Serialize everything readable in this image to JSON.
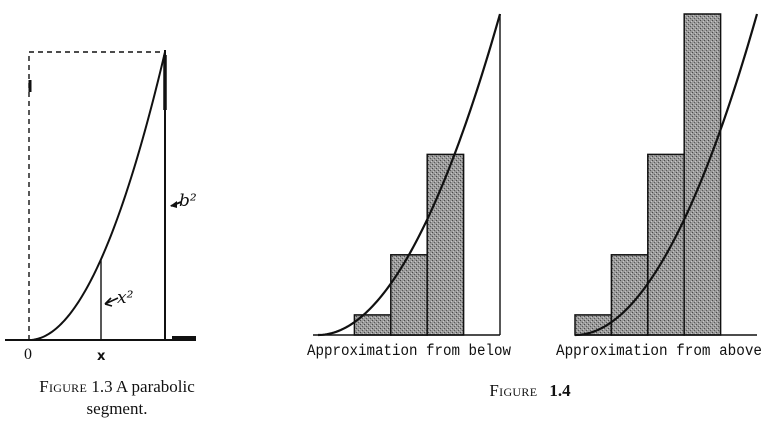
{
  "figure_1_3": {
    "label_b2": "b²",
    "label_x2": "x²",
    "label_origin": "0",
    "label_x": "x",
    "caption_label": "Figure",
    "caption_text": "1.3 A parabolic segment."
  },
  "figure_1_4": {
    "left_label": "Approximation  from  below",
    "right_label": "Approximation  from  above",
    "caption_label": "Figure",
    "caption_number": "1.4",
    "rectangles_below": [
      0,
      0.0625,
      0.25,
      0.5625
    ],
    "rectangles_above": [
      0.0625,
      0.25,
      0.5625,
      1
    ]
  },
  "colors": {
    "ink": "#111111",
    "fill": "#8a8a8a"
  }
}
